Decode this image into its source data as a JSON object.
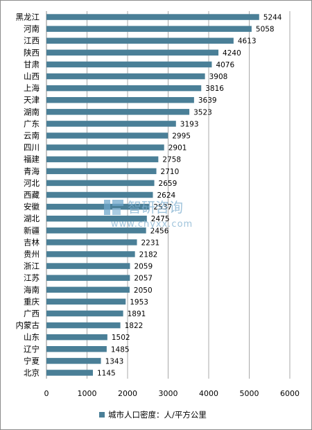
{
  "chart_data": {
    "type": "bar",
    "orientation": "horizontal",
    "categories": [
      "黑龙江",
      "河南",
      "江西",
      "陕西",
      "甘肃",
      "山西",
      "上海",
      "天津",
      "湖南",
      "广东",
      "云南",
      "四川",
      "福建",
      "青海",
      "河北",
      "西藏",
      "安徽",
      "湖北",
      "新疆",
      "吉林",
      "贵州",
      "浙江",
      "江苏",
      "海南",
      "重庆",
      "广西",
      "内蒙古",
      "山东",
      "辽宁",
      "宁夏",
      "北京"
    ],
    "series": [
      {
        "name": "城市人口密度：人/平方公里",
        "values": [
          5244,
          5058,
          4613,
          4240,
          4076,
          3908,
          3816,
          3639,
          3523,
          3193,
          2995,
          2901,
          2758,
          2710,
          2659,
          2624,
          2537,
          2475,
          2456,
          2231,
          2182,
          2059,
          2057,
          2050,
          1953,
          1891,
          1822,
          1502,
          1485,
          1343,
          1145
        ],
        "color": "#4a7f97"
      }
    ],
    "value_labels": [
      "5244",
      "5058",
      "4613",
      "4240",
      "4076",
      "3908",
      "3816",
      "3639",
      "3523",
      "3193",
      "2995",
      "2901",
      "2758",
      "2710",
      "2659",
      "2624",
      "2537",
      "2475",
      "2456",
      "2231",
      "2182",
      "2059",
      "2057",
      "2050",
      "1953",
      "1891",
      "1822",
      "1502",
      "1485",
      "1343",
      "1145"
    ],
    "xlim": [
      0,
      6000
    ],
    "x_ticks": [
      "0",
      "1000",
      "2000",
      "3000",
      "4000",
      "5000",
      "6000"
    ],
    "grid": "vertical",
    "legend": "bottom"
  },
  "watermark": {
    "name": "智研咨询",
    "url": "www.chyxx.com"
  }
}
